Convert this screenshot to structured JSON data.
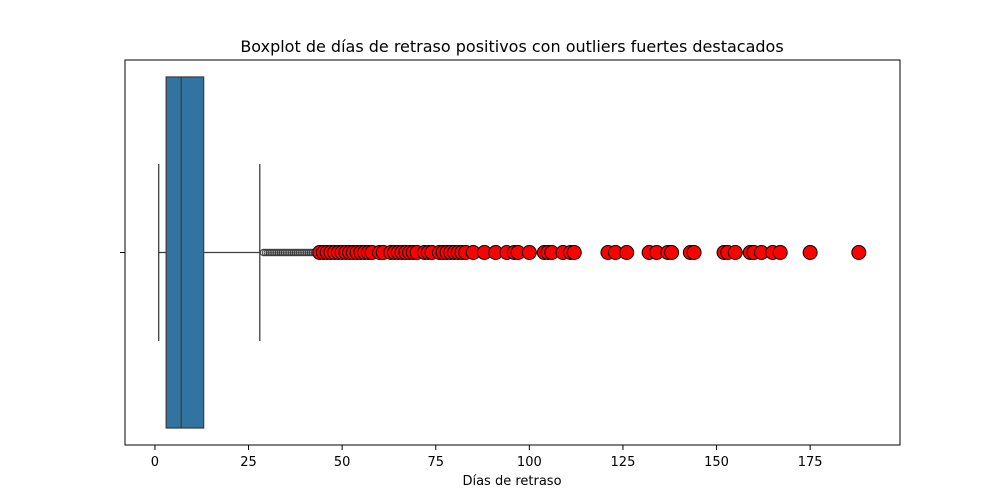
{
  "chart_data": {
    "type": "boxplot",
    "title": "Boxplot de días de retraso positivos con outliers fuertes destacados",
    "xlabel": "Días de retraso",
    "ylabel": "",
    "xlim": [
      -8,
      199
    ],
    "xticks": [
      0,
      25,
      50,
      75,
      100,
      125,
      150,
      175
    ],
    "grid": false,
    "box": {
      "whisker_low": 1,
      "q1": 3,
      "median": 7,
      "q3": 13,
      "whisker_high": 28
    },
    "box_color": "#3274a1",
    "line_color": "#3f3f3f",
    "outlier_edge_color": "#3f3f3f",
    "outliers": [
      29,
      29.5,
      30,
      30.5,
      31,
      31.5,
      32,
      32.5,
      33,
      33.5,
      34,
      34.5,
      35,
      35.5,
      36,
      36.5,
      37,
      37.5,
      38,
      38.5,
      39,
      39.5,
      40,
      40.5,
      41,
      41.5,
      42,
      42.5,
      43
    ],
    "strong_outlier_color": "#ff0000",
    "strong_outliers": [
      44,
      45,
      46,
      47,
      48,
      49,
      50,
      51,
      52,
      53,
      54,
      55,
      56,
      57,
      58,
      60,
      61,
      63,
      64,
      65,
      66,
      67,
      68,
      69,
      70,
      72,
      73,
      74,
      76,
      77,
      78,
      79,
      80,
      81,
      82,
      83,
      85,
      88,
      91,
      94,
      96,
      97,
      100,
      104,
      105,
      106,
      109,
      111,
      112,
      121,
      123,
      126,
      132,
      134,
      137,
      138,
      143,
      144,
      152,
      153,
      155,
      159,
      160,
      162,
      165,
      167,
      175,
      188
    ]
  }
}
